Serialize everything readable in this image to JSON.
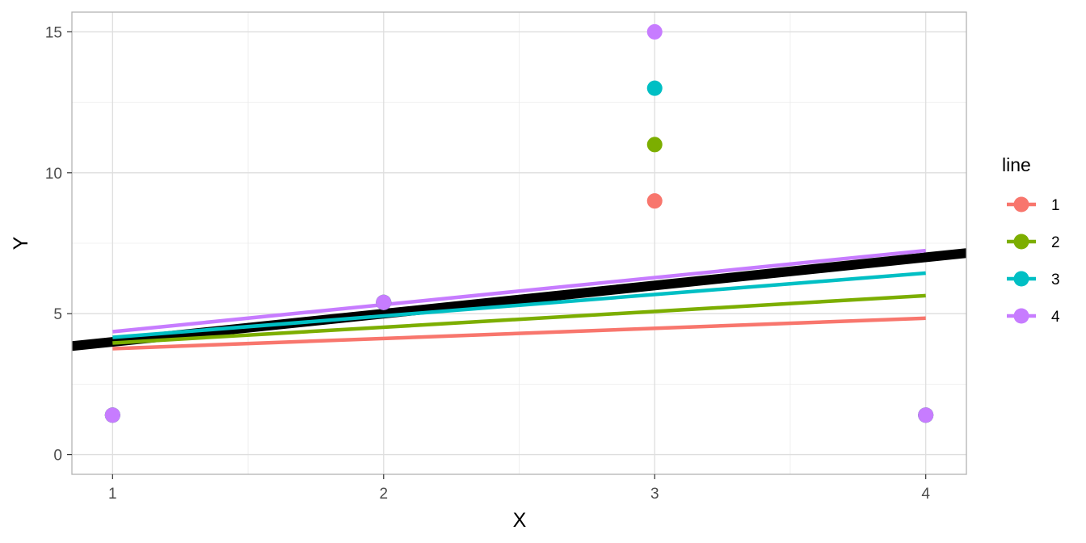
{
  "chart_data": {
    "type": "scatter",
    "xlabel": "X",
    "ylabel": "Y",
    "xlim": [
      0.85,
      4.15
    ],
    "ylim": [
      -0.7,
      15.7
    ],
    "x_ticks": [
      1,
      2,
      3,
      4
    ],
    "y_ticks": [
      0,
      5,
      10,
      15
    ],
    "grid": true,
    "legend": {
      "title": "line",
      "position": "right",
      "entries": [
        "1",
        "2",
        "3",
        "4"
      ]
    },
    "series": [
      {
        "name": "1",
        "color": "#F8766D",
        "points": [
          [
            1,
            1.4
          ],
          [
            2,
            5.4
          ],
          [
            3,
            9
          ],
          [
            4,
            1.4
          ]
        ],
        "fit_line": [
          [
            1,
            3.76
          ],
          [
            4,
            4.84
          ]
        ]
      },
      {
        "name": "2",
        "color": "#7CAE00",
        "points": [
          [
            1,
            1.4
          ],
          [
            2,
            5.4
          ],
          [
            3,
            11
          ],
          [
            4,
            1.4
          ]
        ],
        "fit_line": [
          [
            1,
            3.96
          ],
          [
            4,
            5.64
          ]
        ]
      },
      {
        "name": "3",
        "color": "#00BFC4",
        "points": [
          [
            1,
            1.4
          ],
          [
            2,
            5.4
          ],
          [
            3,
            13
          ],
          [
            4,
            1.4
          ]
        ],
        "fit_line": [
          [
            1,
            4.16
          ],
          [
            4,
            6.44
          ]
        ]
      },
      {
        "name": "4",
        "color": "#C77CFF",
        "points": [
          [
            1,
            1.4
          ],
          [
            2,
            5.4
          ],
          [
            3,
            15
          ],
          [
            4,
            1.4
          ]
        ],
        "fit_line": [
          [
            1,
            4.36
          ],
          [
            4,
            7.24
          ]
        ]
      }
    ],
    "reference_line": {
      "color": "#000000",
      "intercept": 3,
      "slope": 1
    }
  }
}
